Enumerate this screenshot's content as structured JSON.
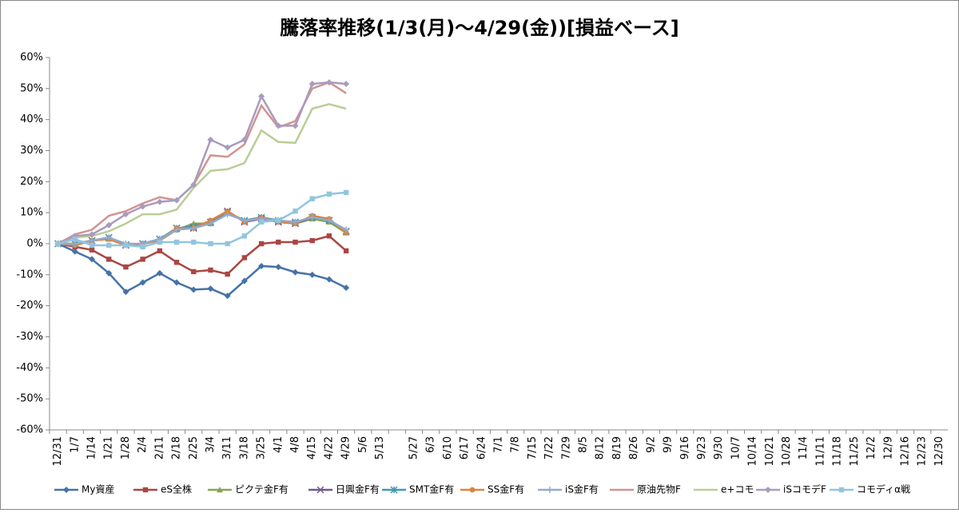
{
  "chart_data": {
    "type": "line",
    "title": "騰落率推移(1/3(月)～4/29(金))[損益ベース]",
    "categories": [
      "12/31",
      "1/7",
      "1/14",
      "1/21",
      "1/28",
      "2/4",
      "2/11",
      "2/18",
      "2/25",
      "3/4",
      "3/11",
      "3/18",
      "3/25",
      "4/1",
      "4/8",
      "4/15",
      "4/22",
      "4/29",
      "5/6",
      "5/13",
      null,
      "5/27",
      "6/3",
      "6/10",
      "6/17",
      "6/24",
      "7/1",
      "7/8",
      "7/15",
      "7/22",
      "7/29",
      "8/5",
      "8/12",
      "8/19",
      "8/26",
      "9/2",
      "9/9",
      "9/16",
      "9/23",
      "9/30",
      "10/7",
      "10/14",
      "10/21",
      "10/28",
      "11/4",
      "11/11",
      "11/18",
      "11/25",
      "12/2",
      "12/9",
      "12/16",
      "12/23",
      "12/30"
    ],
    "ylim": [
      -60,
      60
    ],
    "yticks": [
      {
        "value": -60,
        "label": "-60%"
      },
      {
        "value": -50,
        "label": "-50%"
      },
      {
        "value": -40,
        "label": "-40%"
      },
      {
        "value": -30,
        "label": "-30%"
      },
      {
        "value": -20,
        "label": "-20%"
      },
      {
        "value": -10,
        "label": "-10%"
      },
      {
        "value": 0,
        "label": "0%"
      },
      {
        "value": 10,
        "label": "10%"
      },
      {
        "value": 20,
        "label": "20%"
      },
      {
        "value": 30,
        "label": "30%"
      },
      {
        "value": 40,
        "label": "40%"
      },
      {
        "value": 50,
        "label": "50%"
      },
      {
        "value": 60,
        "label": "60%"
      }
    ],
    "grid": false,
    "legend": "bottom",
    "series": [
      {
        "name": "My資産",
        "color": "#4572a7",
        "marker": "diamond",
        "values": [
          0,
          -2.5,
          -5,
          -9.5,
          -15.5,
          -12.5,
          -9.5,
          -12.5,
          -14.8,
          -14.5,
          -16.8,
          -12,
          -7.2,
          -7.5,
          -9.2,
          -10,
          -11.5,
          -14.2,
          null,
          null,
          null,
          null,
          null,
          null,
          null,
          null,
          null,
          null,
          null,
          null,
          null,
          null,
          null,
          null,
          null,
          null,
          null,
          null,
          null,
          null,
          null,
          null,
          null,
          null,
          null,
          null,
          null,
          null,
          null,
          null,
          null,
          null,
          null
        ]
      },
      {
        "name": "eS全株",
        "color": "#aa4643",
        "marker": "square",
        "values": [
          0,
          -1,
          -2,
          -5,
          -7.5,
          -5,
          -2.3,
          -6,
          -9,
          -8.5,
          -9.8,
          -4.5,
          0,
          0.5,
          0.5,
          1,
          2.5,
          -2.3,
          null,
          null,
          null,
          null,
          null,
          null,
          null,
          null,
          null,
          null,
          null,
          null,
          null,
          null,
          null,
          null,
          null,
          null,
          null,
          null,
          null,
          null,
          null,
          null,
          null,
          null,
          null,
          null,
          null,
          null,
          null,
          null,
          null,
          null,
          null
        ]
      },
      {
        "name": "ピクテ金F有",
        "color": "#89a54e",
        "marker": "triangle",
        "values": [
          0,
          0,
          1,
          1.5,
          -0.5,
          0,
          1,
          4.5,
          6.5,
          6.5,
          10,
          7.5,
          8,
          7,
          6.5,
          8,
          7,
          3.5,
          null,
          null,
          null,
          null,
          null,
          null,
          null,
          null,
          null,
          null,
          null,
          null,
          null,
          null,
          null,
          null,
          null,
          null,
          null,
          null,
          null,
          null,
          null,
          null,
          null,
          null,
          null,
          null,
          null,
          null,
          null,
          null,
          null,
          null,
          null
        ]
      },
      {
        "name": "日興金F有",
        "color": "#71588f",
        "marker": "x",
        "values": [
          0,
          0,
          1,
          2,
          -0.5,
          0,
          1.5,
          5,
          5,
          7,
          10.5,
          7,
          8,
          7,
          6.5,
          8.5,
          7.5,
          4,
          null,
          null,
          null,
          null,
          null,
          null,
          null,
          null,
          null,
          null,
          null,
          null,
          null,
          null,
          null,
          null,
          null,
          null,
          null,
          null,
          null,
          null,
          null,
          null,
          null,
          null,
          null,
          null,
          null,
          null,
          null,
          null,
          null,
          null,
          null
        ]
      },
      {
        "name": "SMT金F有",
        "color": "#4198af",
        "marker": "star",
        "values": [
          0,
          0,
          1,
          2,
          -0.3,
          0,
          1.5,
          5,
          5.5,
          7,
          10,
          7.5,
          8.5,
          7.5,
          7,
          8.5,
          7.5,
          4,
          null,
          null,
          null,
          null,
          null,
          null,
          null,
          null,
          null,
          null,
          null,
          null,
          null,
          null,
          null,
          null,
          null,
          null,
          null,
          null,
          null,
          null,
          null,
          null,
          null,
          null,
          null,
          null,
          null,
          null,
          null,
          null,
          null,
          null,
          null
        ]
      },
      {
        "name": "SS金F有",
        "color": "#db843d",
        "marker": "circle",
        "values": [
          0,
          -0.5,
          1,
          1.5,
          -0.5,
          0,
          1,
          5,
          5,
          7.5,
          10.5,
          7,
          8.5,
          7,
          6.5,
          9,
          8,
          3.5,
          null,
          null,
          null,
          null,
          null,
          null,
          null,
          null,
          null,
          null,
          null,
          null,
          null,
          null,
          null,
          null,
          null,
          null,
          null,
          null,
          null,
          null,
          null,
          null,
          null,
          null,
          null,
          null,
          null,
          null,
          null,
          null,
          null,
          null,
          null
        ]
      },
      {
        "name": "iS金F有",
        "color": "#93a9cf",
        "marker": "plus",
        "values": [
          0,
          0,
          1,
          2,
          0,
          0,
          1.5,
          4.5,
          5,
          6.5,
          9.5,
          7.5,
          8,
          7.5,
          7,
          8.5,
          7.5,
          4.5,
          null,
          null,
          null,
          null,
          null,
          null,
          null,
          null,
          null,
          null,
          null,
          null,
          null,
          null,
          null,
          null,
          null,
          null,
          null,
          null,
          null,
          null,
          null,
          null,
          null,
          null,
          null,
          null,
          null,
          null,
          null,
          null,
          null,
          null,
          null
        ]
      },
      {
        "name": "原油先物F",
        "color": "#d19392",
        "marker": "none",
        "values": [
          0,
          3,
          4.5,
          9,
          10.5,
          13,
          15,
          14,
          19,
          28.5,
          28,
          32,
          44.5,
          37.5,
          39.5,
          50,
          52,
          48.5,
          null,
          null,
          null,
          null,
          null,
          null,
          null,
          null,
          null,
          null,
          null,
          null,
          null,
          null,
          null,
          null,
          null,
          null,
          null,
          null,
          null,
          null,
          null,
          null,
          null,
          null,
          null,
          null,
          null,
          null,
          null,
          null,
          null,
          null,
          null
        ]
      },
      {
        "name": "e+コモ",
        "color": "#b9cd96",
        "marker": "none",
        "values": [
          0,
          2,
          2.5,
          4,
          6.5,
          9.5,
          9.5,
          11,
          18,
          23.5,
          24,
          26,
          36.5,
          32.8,
          32.5,
          43.5,
          45,
          43.5,
          null,
          null,
          null,
          null,
          null,
          null,
          null,
          null,
          null,
          null,
          null,
          null,
          null,
          null,
          null,
          null,
          null,
          null,
          null,
          null,
          null,
          null,
          null,
          null,
          null,
          null,
          null,
          null,
          null,
          null,
          null,
          null,
          null,
          null,
          null
        ]
      },
      {
        "name": "iSコモデF",
        "color": "#a99bbd",
        "marker": "diamond",
        "values": [
          0,
          2.5,
          3,
          6,
          9.5,
          12,
          13.5,
          14,
          19,
          33.5,
          31,
          33.5,
          47.5,
          38,
          38,
          51.5,
          52,
          51.5,
          null,
          null,
          null,
          null,
          null,
          null,
          null,
          null,
          null,
          null,
          null,
          null,
          null,
          null,
          null,
          null,
          null,
          null,
          null,
          null,
          null,
          null,
          null,
          null,
          null,
          null,
          null,
          null,
          null,
          null,
          null,
          null,
          null,
          null,
          null
        ]
      },
      {
        "name": "コモディα戦",
        "color": "#92c5de",
        "marker": "square",
        "values": [
          0,
          1.5,
          -0.5,
          -0.5,
          -0.5,
          -1,
          0.5,
          0.5,
          0.5,
          0,
          0,
          2.5,
          7,
          7.5,
          10.5,
          14.5,
          16,
          16.5,
          null,
          null,
          null,
          null,
          null,
          null,
          null,
          null,
          null,
          null,
          null,
          null,
          null,
          null,
          null,
          null,
          null,
          null,
          null,
          null,
          null,
          null,
          null,
          null,
          null,
          null,
          null,
          null,
          null,
          null,
          null,
          null,
          null,
          null,
          null
        ]
      }
    ]
  }
}
